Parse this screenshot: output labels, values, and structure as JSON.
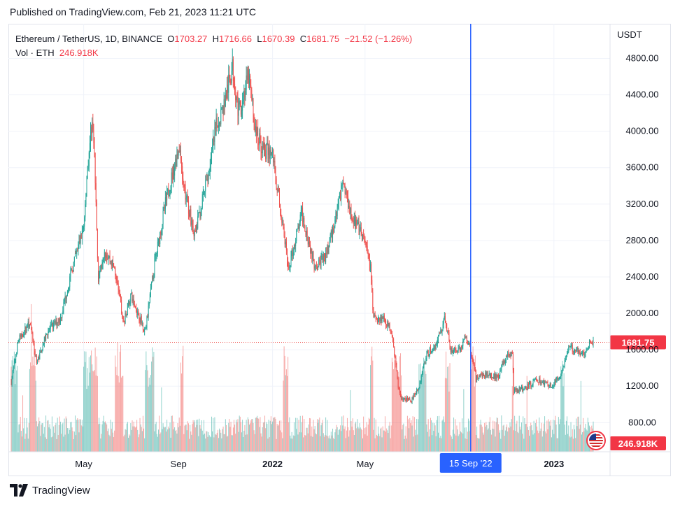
{
  "header": {
    "published": "Published on TradingView.com, Feb 21, 2023 11:21 UTC"
  },
  "legend": {
    "symbol": "Ethereum / TetherUS, 1D, BINANCE",
    "o_label": "O",
    "o_value": "1703.27",
    "h_label": "H",
    "h_value": "1716.66",
    "l_label": "L",
    "l_value": "1670.39",
    "c_label": "C",
    "c_value": "1681.75",
    "change": "−21.52 (−1.26%)",
    "vol_label": "Vol · ETH",
    "vol_value": "246.918K"
  },
  "footer": {
    "brand": "TradingView"
  },
  "colors": {
    "up": "#26a69a",
    "down": "#ef5350",
    "crosshair": "#2962ff",
    "price_badge": "#f23645"
  },
  "icons": [
    "tradingview-logo-icon",
    "us-flag-icon"
  ],
  "chart_data": {
    "type": "candlestick",
    "currency_label": "USDT",
    "y_ticks": [
      800,
      1200,
      1600,
      2000,
      2400,
      2800,
      3200,
      3600,
      4000,
      4400,
      4800
    ],
    "y_tick_labels": [
      "800.00",
      "1200.00",
      "1600.00",
      "2000.00",
      "2400.00",
      "2800.00",
      "3200.00",
      "3600.00",
      "4000.00",
      "4400.00",
      "4800.00"
    ],
    "ylim": [
      480,
      5180
    ],
    "x_range": [
      "2021-01-27",
      "2023-02-21"
    ],
    "x_ticks": [
      {
        "date": "2021-05-01",
        "label": "May",
        "bold": false
      },
      {
        "date": "2021-09-01",
        "label": "Sep",
        "bold": false
      },
      {
        "date": "2022-01-01",
        "label": "2022",
        "bold": true
      },
      {
        "date": "2022-05-01",
        "label": "May",
        "bold": false
      },
      {
        "date": "2023-01-01",
        "label": "2023",
        "bold": true
      }
    ],
    "crosshair": {
      "date": "2022-09-15",
      "label": "15 Sep '22"
    },
    "last_price": {
      "value": 1681.75,
      "label": "1681.75"
    },
    "last_volume": {
      "label": "246.918K"
    },
    "price_path": [
      [
        "2021-01-27",
        1250
      ],
      [
        "2021-02-05",
        1700
      ],
      [
        "2021-02-20",
        1900
      ],
      [
        "2021-03-01",
        1450
      ],
      [
        "2021-03-15",
        1800
      ],
      [
        "2021-04-01",
        1950
      ],
      [
        "2021-04-15",
        2450
      ],
      [
        "2021-05-01",
        2950
      ],
      [
        "2021-05-05",
        3500
      ],
      [
        "2021-05-12",
        4150
      ],
      [
        "2021-05-15",
        3700
      ],
      [
        "2021-05-20",
        2400
      ],
      [
        "2021-05-28",
        2700
      ],
      [
        "2021-06-10",
        2500
      ],
      [
        "2021-06-22",
        1900
      ],
      [
        "2021-07-01",
        2200
      ],
      [
        "2021-07-20",
        1800
      ],
      [
        "2021-08-01",
        2550
      ],
      [
        "2021-08-15",
        3200
      ],
      [
        "2021-09-02",
        3850
      ],
      [
        "2021-09-08",
        3400
      ],
      [
        "2021-09-22",
        2850
      ],
      [
        "2021-10-01",
        3200
      ],
      [
        "2021-10-10",
        3550
      ],
      [
        "2021-10-20",
        4050
      ],
      [
        "2021-10-30",
        4300
      ],
      [
        "2021-11-10",
        4700
      ],
      [
        "2021-11-18",
        4200
      ],
      [
        "2021-12-01",
        4600
      ],
      [
        "2021-12-10",
        4000
      ],
      [
        "2021-12-20",
        3800
      ],
      [
        "2022-01-01",
        3750
      ],
      [
        "2022-01-10",
        3200
      ],
      [
        "2022-01-22",
        2500
      ],
      [
        "2022-02-08",
        3100
      ],
      [
        "2022-02-24",
        2550
      ],
      [
        "2022-03-10",
        2600
      ],
      [
        "2022-03-20",
        2900
      ],
      [
        "2022-04-02",
        3450
      ],
      [
        "2022-04-15",
        3050
      ],
      [
        "2022-04-30",
        2800
      ],
      [
        "2022-05-08",
        2500
      ],
      [
        "2022-05-12",
        1950
      ],
      [
        "2022-05-25",
        1950
      ],
      [
        "2022-06-05",
        1800
      ],
      [
        "2022-06-13",
        1200
      ],
      [
        "2022-06-18",
        1050
      ],
      [
        "2022-06-30",
        1050
      ],
      [
        "2022-07-10",
        1200
      ],
      [
        "2022-07-20",
        1550
      ],
      [
        "2022-08-01",
        1650
      ],
      [
        "2022-08-13",
        1950
      ],
      [
        "2022-08-20",
        1600
      ],
      [
        "2022-09-01",
        1600
      ],
      [
        "2022-09-09",
        1750
      ],
      [
        "2022-09-15",
        1600
      ],
      [
        "2022-09-22",
        1300
      ],
      [
        "2022-10-05",
        1330
      ],
      [
        "2022-10-20",
        1300
      ],
      [
        "2022-11-01",
        1550
      ],
      [
        "2022-11-08",
        1550
      ],
      [
        "2022-11-10",
        1150
      ],
      [
        "2022-11-25",
        1180
      ],
      [
        "2022-12-10",
        1270
      ],
      [
        "2022-12-30",
        1200
      ],
      [
        "2023-01-10",
        1330
      ],
      [
        "2023-01-20",
        1620
      ],
      [
        "2023-02-01",
        1600
      ],
      [
        "2023-02-09",
        1550
      ],
      [
        "2023-02-16",
        1690
      ],
      [
        "2023-02-21",
        1682
      ]
    ]
  }
}
